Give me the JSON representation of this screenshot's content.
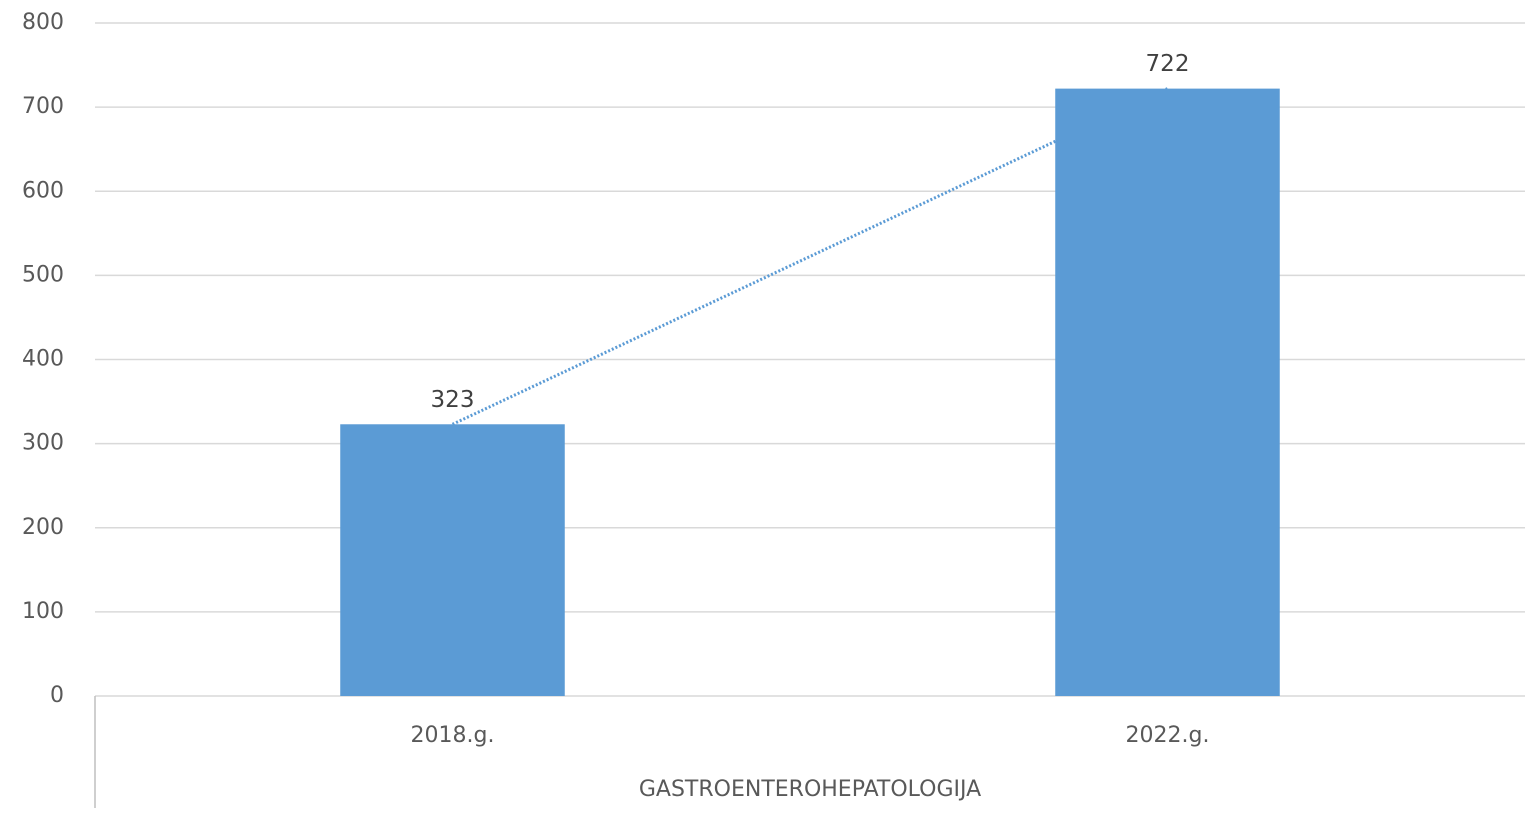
{
  "chart_data": {
    "type": "bar",
    "xlabel": "GASTROENTEROHEPATOLOGIJA",
    "categories": [
      "2018.g.",
      "2022.g."
    ],
    "values": [
      323,
      722
    ],
    "color": "#5b9bd5",
    "ylim": [
      0,
      800
    ],
    "yticks": [
      0,
      100,
      200,
      300,
      400,
      500,
      600,
      700,
      800
    ],
    "grid": true,
    "data_labels": true,
    "trendline": true,
    "trendline_color": "#5b9bd5"
  }
}
